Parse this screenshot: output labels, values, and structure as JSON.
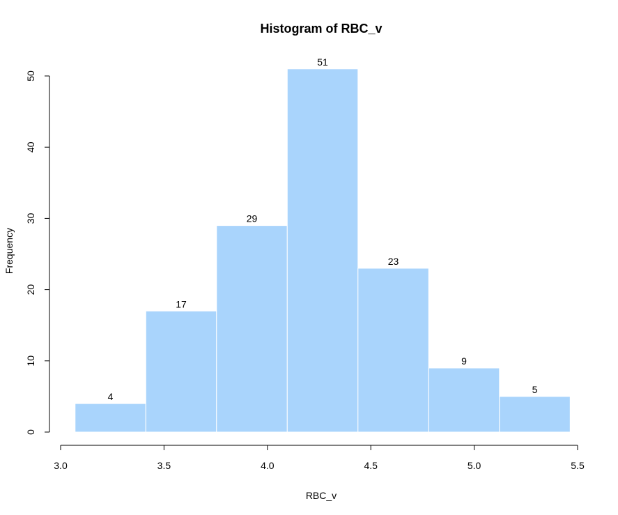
{
  "chart_data": {
    "type": "bar",
    "title": "Histogram of RBC_v",
    "xlabel": "RBC_v",
    "ylabel": "Frequency",
    "bins": [
      {
        "start": 3.07,
        "end": 3.412,
        "count": 4
      },
      {
        "start": 3.412,
        "end": 3.754,
        "count": 17
      },
      {
        "start": 3.754,
        "end": 4.096,
        "count": 29
      },
      {
        "start": 4.096,
        "end": 4.438,
        "count": 51
      },
      {
        "start": 4.438,
        "end": 4.78,
        "count": 23
      },
      {
        "start": 4.78,
        "end": 5.122,
        "count": 9
      },
      {
        "start": 5.122,
        "end": 5.464,
        "count": 5
      }
    ],
    "xlim": [
      3.0,
      5.5
    ],
    "ylim": [
      0,
      51
    ],
    "xticks": [
      "3.0",
      "3.5",
      "4.0",
      "4.5",
      "5.0",
      "5.5"
    ],
    "yticks": [
      "0",
      "10",
      "20",
      "30",
      "40",
      "50"
    ],
    "bar_color": "#a9d4fc",
    "bar_border_color": "#ffffff",
    "grid": false,
    "legend": false
  }
}
